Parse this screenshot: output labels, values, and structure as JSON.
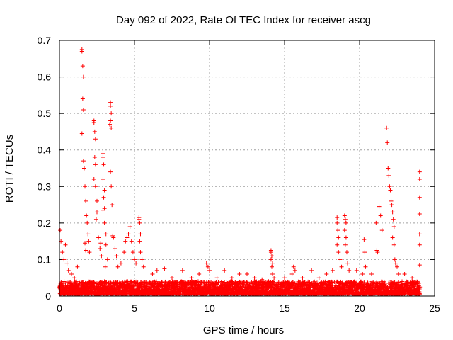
{
  "chart_data": {
    "type": "scatter",
    "title": "Day 092 of 2022, Rate Of TEC Index for receiver ascg",
    "xlabel": "GPS time / hours",
    "ylabel": "ROTI / TECUs",
    "xlim": [
      0,
      25
    ],
    "ylim": [
      0,
      0.7
    ],
    "xticks": [
      "0",
      "5",
      "10",
      "15",
      "20",
      "25"
    ],
    "yticks": [
      "0",
      "0.1",
      "0.2",
      "0.3",
      "0.4",
      "0.5",
      "0.6",
      "0.7"
    ],
    "grid": true,
    "marker": "plus",
    "colors": {
      "points": "#ff0000"
    },
    "series": [
      {
        "points": [
          [
            0.05,
            0.18
          ],
          [
            0.1,
            0.15
          ],
          [
            0.2,
            0.12
          ],
          [
            0.3,
            0.1
          ],
          [
            0.4,
            0.14
          ],
          [
            0.5,
            0.09
          ],
          [
            0.6,
            0.07
          ],
          [
            0.8,
            0.06
          ],
          [
            1.0,
            0.05
          ],
          [
            1.2,
            0.08
          ],
          [
            1.5,
            0.675
          ],
          [
            1.5,
            0.67
          ],
          [
            1.55,
            0.63
          ],
          [
            1.6,
            0.6
          ],
          [
            1.55,
            0.54
          ],
          [
            1.6,
            0.51
          ],
          [
            1.5,
            0.445
          ],
          [
            1.6,
            0.37
          ],
          [
            1.65,
            0.35
          ],
          [
            1.7,
            0.3
          ],
          [
            1.75,
            0.26
          ],
          [
            1.8,
            0.22
          ],
          [
            1.85,
            0.2
          ],
          [
            1.9,
            0.17
          ],
          [
            1.95,
            0.15
          ],
          [
            2.0,
            0.12
          ],
          [
            1.7,
            0.145
          ],
          [
            1.75,
            0.125
          ],
          [
            2.3,
            0.475
          ],
          [
            2.3,
            0.48
          ],
          [
            2.35,
            0.45
          ],
          [
            2.4,
            0.43
          ],
          [
            2.35,
            0.38
          ],
          [
            2.4,
            0.36
          ],
          [
            2.3,
            0.32
          ],
          [
            2.4,
            0.3
          ],
          [
            2.5,
            0.26
          ],
          [
            2.5,
            0.23
          ],
          [
            2.45,
            0.21
          ],
          [
            2.6,
            0.16
          ],
          [
            2.7,
            0.13
          ],
          [
            2.8,
            0.11
          ],
          [
            2.75,
            0.145
          ],
          [
            2.9,
            0.39
          ],
          [
            2.9,
            0.38
          ],
          [
            2.95,
            0.36
          ],
          [
            2.9,
            0.32
          ],
          [
            3.0,
            0.29
          ],
          [
            2.95,
            0.27
          ],
          [
            3.0,
            0.24
          ],
          [
            2.9,
            0.235
          ],
          [
            3.0,
            0.2
          ],
          [
            3.1,
            0.17
          ],
          [
            3.1,
            0.14
          ],
          [
            3.2,
            0.1
          ],
          [
            3.05,
            0.08
          ],
          [
            3.4,
            0.53
          ],
          [
            3.4,
            0.52
          ],
          [
            3.45,
            0.5
          ],
          [
            3.4,
            0.48
          ],
          [
            3.45,
            0.46
          ],
          [
            3.35,
            0.47
          ],
          [
            3.4,
            0.34
          ],
          [
            3.45,
            0.3
          ],
          [
            3.5,
            0.25
          ],
          [
            3.55,
            0.165
          ],
          [
            3.6,
            0.16
          ],
          [
            3.7,
            0.13
          ],
          [
            3.8,
            0.11
          ],
          [
            3.9,
            0.08
          ],
          [
            4.1,
            0.09
          ],
          [
            4.3,
            0.12
          ],
          [
            4.4,
            0.15
          ],
          [
            4.5,
            0.16
          ],
          [
            4.6,
            0.17
          ],
          [
            4.7,
            0.19
          ],
          [
            4.8,
            0.15
          ],
          [
            4.9,
            0.12
          ],
          [
            5.0,
            0.1
          ],
          [
            5.1,
            0.09
          ],
          [
            5.3,
            0.215
          ],
          [
            5.3,
            0.21
          ],
          [
            5.35,
            0.2
          ],
          [
            5.4,
            0.17
          ],
          [
            5.35,
            0.15
          ],
          [
            5.4,
            0.12
          ],
          [
            5.5,
            0.1
          ],
          [
            5.6,
            0.08
          ],
          [
            6.2,
            0.06
          ],
          [
            6.5,
            0.07
          ],
          [
            7.0,
            0.075
          ],
          [
            7.5,
            0.05
          ],
          [
            8.2,
            0.07
          ],
          [
            8.8,
            0.05
          ],
          [
            9.3,
            0.06
          ],
          [
            9.8,
            0.09
          ],
          [
            9.9,
            0.08
          ],
          [
            10.0,
            0.07
          ],
          [
            10.5,
            0.05
          ],
          [
            11.0,
            0.07
          ],
          [
            11.5,
            0.05
          ],
          [
            12.0,
            0.06
          ],
          [
            12.5,
            0.06
          ],
          [
            13.0,
            0.05
          ],
          [
            13.5,
            0.045
          ],
          [
            14.1,
            0.125
          ],
          [
            14.1,
            0.12
          ],
          [
            14.15,
            0.11
          ],
          [
            14.1,
            0.1
          ],
          [
            14.2,
            0.09
          ],
          [
            14.15,
            0.08
          ],
          [
            14.2,
            0.06
          ],
          [
            14.3,
            0.05
          ],
          [
            15.0,
            0.05
          ],
          [
            15.5,
            0.06
          ],
          [
            15.6,
            0.08
          ],
          [
            15.7,
            0.07
          ],
          [
            16.2,
            0.05
          ],
          [
            16.8,
            0.07
          ],
          [
            17.3,
            0.05
          ],
          [
            17.8,
            0.06
          ],
          [
            18.2,
            0.07
          ],
          [
            18.5,
            0.215
          ],
          [
            18.5,
            0.2
          ],
          [
            18.55,
            0.18
          ],
          [
            18.6,
            0.16
          ],
          [
            18.5,
            0.14
          ],
          [
            18.6,
            0.12
          ],
          [
            18.7,
            0.1
          ],
          [
            18.8,
            0.08
          ],
          [
            19.0,
            0.22
          ],
          [
            19.05,
            0.21
          ],
          [
            19.1,
            0.2
          ],
          [
            19.0,
            0.18
          ],
          [
            19.1,
            0.16
          ],
          [
            19.05,
            0.14
          ],
          [
            19.15,
            0.12
          ],
          [
            19.2,
            0.09
          ],
          [
            19.3,
            0.07
          ],
          [
            19.8,
            0.07
          ],
          [
            20.2,
            0.06
          ],
          [
            20.3,
            0.155
          ],
          [
            20.35,
            0.12
          ],
          [
            20.4,
            0.08
          ],
          [
            20.8,
            0.06
          ],
          [
            21.1,
            0.2
          ],
          [
            21.15,
            0.125
          ],
          [
            21.2,
            0.12
          ],
          [
            21.3,
            0.245
          ],
          [
            21.4,
            0.22
          ],
          [
            21.5,
            0.18
          ],
          [
            21.8,
            0.46
          ],
          [
            21.85,
            0.42
          ],
          [
            21.9,
            0.35
          ],
          [
            21.95,
            0.33
          ],
          [
            22.0,
            0.3
          ],
          [
            22.05,
            0.29
          ],
          [
            22.1,
            0.26
          ],
          [
            22.15,
            0.25
          ],
          [
            22.2,
            0.23
          ],
          [
            22.25,
            0.21
          ],
          [
            22.3,
            0.19
          ],
          [
            22.2,
            0.16
          ],
          [
            22.3,
            0.14
          ],
          [
            22.35,
            0.1
          ],
          [
            22.4,
            0.09
          ],
          [
            22.5,
            0.08
          ],
          [
            22.6,
            0.06
          ],
          [
            23.0,
            0.06
          ],
          [
            23.5,
            0.05
          ],
          [
            24.0,
            0.34
          ],
          [
            24.0,
            0.32
          ],
          [
            24.0,
            0.27
          ],
          [
            24.0,
            0.225
          ],
          [
            24.0,
            0.17
          ],
          [
            24.0,
            0.14
          ],
          [
            24.0,
            0.085
          ]
        ],
        "baseline": {
          "x_start": 0,
          "x_end": 24,
          "y_min": 0.005,
          "y_max": 0.04
        }
      }
    ]
  }
}
